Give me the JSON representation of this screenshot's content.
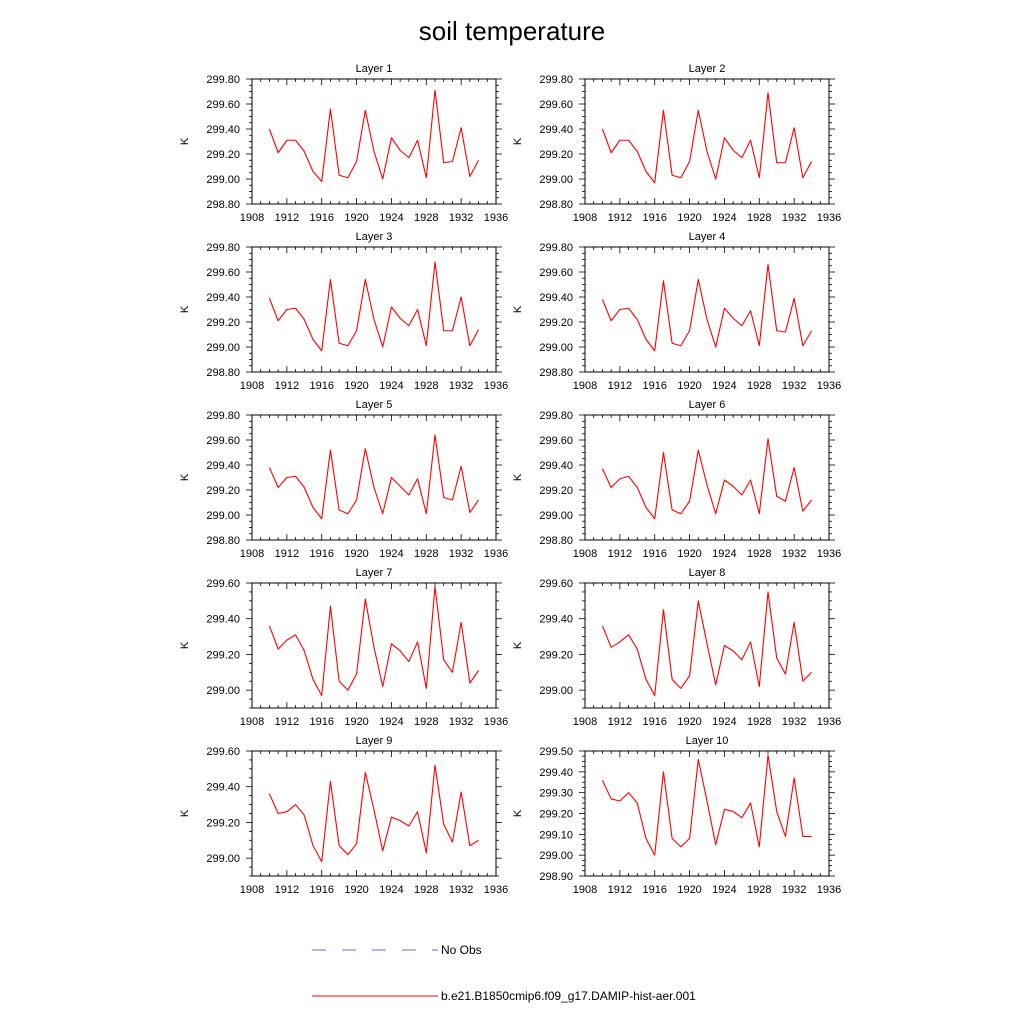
{
  "title": "soil temperature",
  "colors": {
    "model": "#ff0000",
    "obs": "#6b6bd6",
    "axis": "#000000"
  },
  "legend": {
    "position": "bottom-center",
    "entries": [
      {
        "label": "No Obs",
        "style": "dashed",
        "color": "#6b6bd6"
      },
      {
        "label": "b.e21.B1850cmip6.f09_g17.DAMIP-hist-aer.001",
        "style": "solid",
        "color": "#ff0000"
      }
    ]
  },
  "chart_data": [
    {
      "type": "line",
      "title": "Layer 1",
      "ylabel": "K",
      "xlim": [
        1908,
        1936
      ],
      "ylim": [
        298.8,
        299.8
      ],
      "xticks": [
        "1908",
        "1912",
        "1916",
        "1920",
        "1924",
        "1928",
        "1932",
        "1936"
      ],
      "yticks": [
        "298.80",
        "299.00",
        "299.20",
        "299.40",
        "299.60",
        "299.80"
      ],
      "x": [
        1910,
        1911,
        1912,
        1913,
        1914,
        1915,
        1916,
        1917,
        1918,
        1919,
        1920,
        1921,
        1922,
        1923,
        1924,
        1925,
        1926,
        1927,
        1928,
        1929,
        1930,
        1931,
        1932,
        1933,
        1934
      ],
      "series": [
        {
          "values": [
            299.4,
            299.21,
            299.31,
            299.31,
            299.22,
            299.06,
            298.98,
            299.56,
            299.03,
            299.01,
            299.14,
            299.55,
            299.22,
            299.0,
            299.33,
            299.23,
            299.17,
            299.31,
            299.01,
            299.71,
            299.13,
            299.14,
            299.41,
            299.02,
            299.15
          ]
        }
      ]
    },
    {
      "type": "line",
      "title": "Layer 2",
      "ylabel": "K",
      "xlim": [
        1908,
        1936
      ],
      "ylim": [
        298.8,
        299.8
      ],
      "xticks": [
        "1908",
        "1912",
        "1916",
        "1920",
        "1924",
        "1928",
        "1932",
        "1936"
      ],
      "yticks": [
        "298.80",
        "299.00",
        "299.20",
        "299.40",
        "299.60",
        "299.80"
      ],
      "x": [
        1910,
        1911,
        1912,
        1913,
        1914,
        1915,
        1916,
        1917,
        1918,
        1919,
        1920,
        1921,
        1922,
        1923,
        1924,
        1925,
        1926,
        1927,
        1928,
        1929,
        1930,
        1931,
        1932,
        1933,
        1934
      ],
      "series": [
        {
          "values": [
            299.4,
            299.21,
            299.31,
            299.31,
            299.22,
            299.06,
            298.97,
            299.55,
            299.03,
            299.01,
            299.14,
            299.55,
            299.22,
            299.0,
            299.33,
            299.23,
            299.17,
            299.31,
            299.01,
            299.69,
            299.13,
            299.13,
            299.41,
            299.01,
            299.14
          ]
        }
      ]
    },
    {
      "type": "line",
      "title": "Layer 3",
      "ylabel": "K",
      "xlim": [
        1908,
        1936
      ],
      "ylim": [
        298.8,
        299.8
      ],
      "xticks": [
        "1908",
        "1912",
        "1916",
        "1920",
        "1924",
        "1928",
        "1932",
        "1936"
      ],
      "yticks": [
        "298.80",
        "299.00",
        "299.20",
        "299.40",
        "299.60",
        "299.80"
      ],
      "x": [
        1910,
        1911,
        1912,
        1913,
        1914,
        1915,
        1916,
        1917,
        1918,
        1919,
        1920,
        1921,
        1922,
        1923,
        1924,
        1925,
        1926,
        1927,
        1928,
        1929,
        1930,
        1931,
        1932,
        1933,
        1934
      ],
      "series": [
        {
          "values": [
            299.39,
            299.21,
            299.3,
            299.31,
            299.22,
            299.06,
            298.97,
            299.54,
            299.03,
            299.01,
            299.13,
            299.54,
            299.22,
            299.0,
            299.32,
            299.23,
            299.17,
            299.3,
            299.01,
            299.68,
            299.13,
            299.13,
            299.4,
            299.01,
            299.14
          ]
        }
      ]
    },
    {
      "type": "line",
      "title": "Layer 4",
      "ylabel": "K",
      "xlim": [
        1908,
        1936
      ],
      "ylim": [
        298.8,
        299.8
      ],
      "xticks": [
        "1908",
        "1912",
        "1916",
        "1920",
        "1924",
        "1928",
        "1932",
        "1936"
      ],
      "yticks": [
        "298.80",
        "299.00",
        "299.20",
        "299.40",
        "299.60",
        "299.80"
      ],
      "x": [
        1910,
        1911,
        1912,
        1913,
        1914,
        1915,
        1916,
        1917,
        1918,
        1919,
        1920,
        1921,
        1922,
        1923,
        1924,
        1925,
        1926,
        1927,
        1928,
        1929,
        1930,
        1931,
        1932,
        1933,
        1934
      ],
      "series": [
        {
          "values": [
            299.38,
            299.21,
            299.3,
            299.31,
            299.22,
            299.06,
            298.97,
            299.53,
            299.03,
            299.01,
            299.13,
            299.54,
            299.22,
            299.0,
            299.31,
            299.23,
            299.17,
            299.29,
            299.01,
            299.66,
            299.13,
            299.12,
            299.39,
            299.01,
            299.13
          ]
        }
      ]
    },
    {
      "type": "line",
      "title": "Layer 5",
      "ylabel": "K",
      "xlim": [
        1908,
        1936
      ],
      "ylim": [
        298.8,
        299.8
      ],
      "xticks": [
        "1908",
        "1912",
        "1916",
        "1920",
        "1924",
        "1928",
        "1932",
        "1936"
      ],
      "yticks": [
        "298.80",
        "299.00",
        "299.20",
        "299.40",
        "299.60",
        "299.80"
      ],
      "x": [
        1910,
        1911,
        1912,
        1913,
        1914,
        1915,
        1916,
        1917,
        1918,
        1919,
        1920,
        1921,
        1922,
        1923,
        1924,
        1925,
        1926,
        1927,
        1928,
        1929,
        1930,
        1931,
        1932,
        1933,
        1934
      ],
      "series": [
        {
          "values": [
            299.38,
            299.22,
            299.3,
            299.31,
            299.22,
            299.06,
            298.97,
            299.52,
            299.04,
            299.01,
            299.12,
            299.53,
            299.22,
            299.01,
            299.3,
            299.23,
            299.16,
            299.29,
            299.01,
            299.64,
            299.14,
            299.12,
            299.39,
            299.02,
            299.12
          ]
        }
      ]
    },
    {
      "type": "line",
      "title": "Layer 6",
      "ylabel": "K",
      "xlim": [
        1908,
        1936
      ],
      "ylim": [
        298.8,
        299.8
      ],
      "xticks": [
        "1908",
        "1912",
        "1916",
        "1920",
        "1924",
        "1928",
        "1932",
        "1936"
      ],
      "yticks": [
        "298.80",
        "299.00",
        "299.20",
        "299.40",
        "299.60",
        "299.80"
      ],
      "x": [
        1910,
        1911,
        1912,
        1913,
        1914,
        1915,
        1916,
        1917,
        1918,
        1919,
        1920,
        1921,
        1922,
        1923,
        1924,
        1925,
        1926,
        1927,
        1928,
        1929,
        1930,
        1931,
        1932,
        1933,
        1934
      ],
      "series": [
        {
          "values": [
            299.37,
            299.22,
            299.29,
            299.31,
            299.22,
            299.06,
            298.97,
            299.5,
            299.04,
            299.01,
            299.11,
            299.52,
            299.24,
            299.01,
            299.28,
            299.23,
            299.16,
            299.28,
            299.01,
            299.61,
            299.15,
            299.11,
            299.38,
            299.03,
            299.12
          ]
        }
      ]
    },
    {
      "type": "line",
      "title": "Layer 7",
      "ylabel": "K",
      "xlim": [
        1908,
        1936
      ],
      "ylim": [
        298.9,
        299.6
      ],
      "xticks": [
        "1908",
        "1912",
        "1916",
        "1920",
        "1924",
        "1928",
        "1932",
        "1936"
      ],
      "yticks": [
        "299.00",
        "299.20",
        "299.40",
        "299.60"
      ],
      "x": [
        1910,
        1911,
        1912,
        1913,
        1914,
        1915,
        1916,
        1917,
        1918,
        1919,
        1920,
        1921,
        1922,
        1923,
        1924,
        1925,
        1926,
        1927,
        1928,
        1929,
        1930,
        1931,
        1932,
        1933,
        1934
      ],
      "series": [
        {
          "values": [
            299.36,
            299.23,
            299.28,
            299.31,
            299.22,
            299.06,
            298.97,
            299.47,
            299.05,
            299.0,
            299.09,
            299.51,
            299.24,
            299.02,
            299.26,
            299.22,
            299.16,
            299.27,
            299.01,
            299.58,
            299.17,
            299.1,
            299.38,
            299.04,
            299.11
          ]
        }
      ]
    },
    {
      "type": "line",
      "title": "Layer 8",
      "ylabel": "K",
      "xlim": [
        1908,
        1936
      ],
      "ylim": [
        298.9,
        299.6
      ],
      "xticks": [
        "1908",
        "1912",
        "1916",
        "1920",
        "1924",
        "1928",
        "1932",
        "1936"
      ],
      "yticks": [
        "299.00",
        "299.20",
        "299.40",
        "299.60"
      ],
      "x": [
        1910,
        1911,
        1912,
        1913,
        1914,
        1915,
        1916,
        1917,
        1918,
        1919,
        1920,
        1921,
        1922,
        1923,
        1924,
        1925,
        1926,
        1927,
        1928,
        1929,
        1930,
        1931,
        1932,
        1933,
        1934
      ],
      "series": [
        {
          "values": [
            299.36,
            299.24,
            299.27,
            299.31,
            299.23,
            299.06,
            298.97,
            299.45,
            299.06,
            299.01,
            299.08,
            299.5,
            299.26,
            299.03,
            299.25,
            299.22,
            299.17,
            299.27,
            299.02,
            299.55,
            299.18,
            299.09,
            299.38,
            299.05,
            299.1
          ]
        }
      ]
    },
    {
      "type": "line",
      "title": "Layer 9",
      "ylabel": "K",
      "xlim": [
        1908,
        1936
      ],
      "ylim": [
        298.9,
        299.6
      ],
      "xticks": [
        "1908",
        "1912",
        "1916",
        "1920",
        "1924",
        "1928",
        "1932",
        "1936"
      ],
      "yticks": [
        "299.00",
        "299.20",
        "299.40",
        "299.60"
      ],
      "x": [
        1910,
        1911,
        1912,
        1913,
        1914,
        1915,
        1916,
        1917,
        1918,
        1919,
        1920,
        1921,
        1922,
        1923,
        1924,
        1925,
        1926,
        1927,
        1928,
        1929,
        1930,
        1931,
        1932,
        1933,
        1934
      ],
      "series": [
        {
          "values": [
            299.36,
            299.25,
            299.26,
            299.3,
            299.24,
            299.07,
            298.98,
            299.43,
            299.07,
            299.02,
            299.08,
            299.48,
            299.27,
            299.04,
            299.23,
            299.21,
            299.18,
            299.26,
            299.03,
            299.52,
            299.19,
            299.09,
            299.37,
            299.07,
            299.1
          ]
        }
      ]
    },
    {
      "type": "line",
      "title": "Layer 10",
      "ylabel": "K",
      "xlim": [
        1908,
        1936
      ],
      "ylim": [
        298.9,
        299.5
      ],
      "xticks": [
        "1908",
        "1912",
        "1916",
        "1920",
        "1924",
        "1928",
        "1932",
        "1936"
      ],
      "yticks": [
        "298.90",
        "299.00",
        "299.10",
        "299.20",
        "299.30",
        "299.40",
        "299.50"
      ],
      "x": [
        1910,
        1911,
        1912,
        1913,
        1914,
        1915,
        1916,
        1917,
        1918,
        1919,
        1920,
        1921,
        1922,
        1923,
        1924,
        1925,
        1926,
        1927,
        1928,
        1929,
        1930,
        1931,
        1932,
        1933,
        1934
      ],
      "series": [
        {
          "values": [
            299.36,
            299.27,
            299.26,
            299.3,
            299.25,
            299.08,
            299.0,
            299.4,
            299.08,
            299.04,
            299.08,
            299.46,
            299.26,
            299.05,
            299.22,
            299.21,
            299.18,
            299.25,
            299.04,
            299.48,
            299.21,
            299.09,
            299.37,
            299.09,
            299.09
          ]
        }
      ]
    }
  ]
}
